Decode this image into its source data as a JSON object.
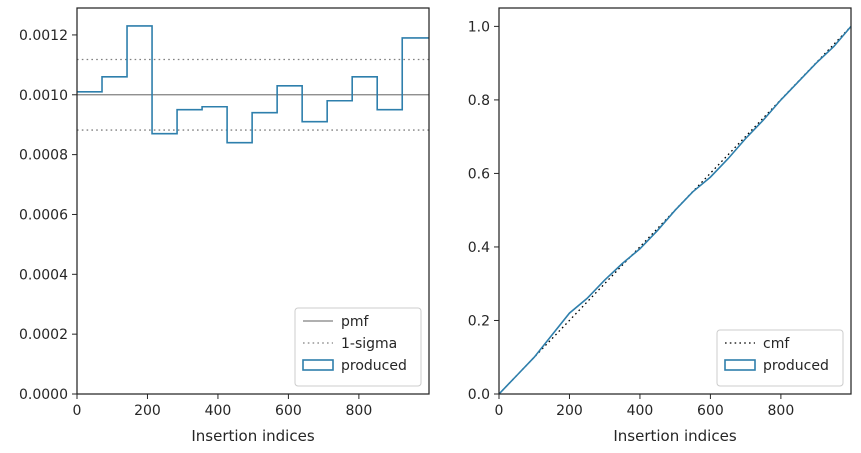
{
  "chart_data": [
    {
      "type": "line",
      "xlabel": "Insertion indices",
      "ylabel": "",
      "xlim": [
        0,
        999
      ],
      "ylim": [
        0,
        0.00129
      ],
      "xticks": [
        0,
        200,
        400,
        600,
        800
      ],
      "xtick_labels": [
        "0",
        "200",
        "400",
        "600",
        "800"
      ],
      "yticks": [
        0,
        0.0002,
        0.0004,
        0.0006,
        0.0008,
        0.001,
        0.0012
      ],
      "ytick_labels": [
        "0.0000",
        "0.0002",
        "0.0004",
        "0.0006",
        "0.0008",
        "0.0010",
        "0.0012"
      ],
      "legend_position": "lower-right",
      "series": [
        {
          "name": "pmf",
          "style": "solid",
          "color": "#808080",
          "x": [
            0,
            999
          ],
          "y": [
            0.001,
            0.001
          ]
        },
        {
          "name": "1-sigma",
          "style": "dotted",
          "color": "#808080",
          "x": [
            0,
            999
          ],
          "y": [
            0.000882,
            0.000882
          ]
        },
        {
          "name": "",
          "style": "dotted",
          "color": "#808080",
          "x": [
            0,
            999
          ],
          "y": [
            0.001118,
            0.001118
          ]
        },
        {
          "name": "produced",
          "style": "step",
          "color": "#2e7fac",
          "bin_edges": [
            0,
            71,
            142,
            213,
            284,
            355,
            426,
            497,
            568,
            639,
            710,
            781,
            852,
            923,
            999
          ],
          "values": [
            0.00101,
            0.00106,
            0.00123,
            0.00087,
            0.00095,
            0.00096,
            0.00084,
            0.00094,
            0.00103,
            0.00091,
            0.00098,
            0.00106,
            0.00095,
            0.00119
          ]
        }
      ],
      "legend": [
        "pmf",
        "1-sigma",
        "produced"
      ]
    },
    {
      "type": "line",
      "xlabel": "Insertion indices",
      "ylabel": "",
      "xlim": [
        0,
        999
      ],
      "ylim": [
        0,
        1.05
      ],
      "xticks": [
        0,
        200,
        400,
        600,
        800
      ],
      "xtick_labels": [
        "0",
        "200",
        "400",
        "600",
        "800"
      ],
      "yticks": [
        0,
        0.2,
        0.4,
        0.6,
        0.8,
        1.0
      ],
      "ytick_labels": [
        "0.0",
        "0.2",
        "0.4",
        "0.6",
        "0.8",
        "1.0"
      ],
      "legend_position": "lower-right",
      "series": [
        {
          "name": "cmf",
          "style": "dotted",
          "color": "#000000",
          "x": [
            0,
            999
          ],
          "y": [
            0,
            1
          ]
        },
        {
          "name": "produced",
          "style": "solid",
          "color": "#2e7fac",
          "x": [
            0,
            50,
            100,
            150,
            200,
            250,
            300,
            350,
            400,
            450,
            500,
            550,
            600,
            650,
            700,
            750,
            800,
            850,
            900,
            950,
            999
          ],
          "y": [
            0,
            0.05,
            0.1,
            0.16,
            0.22,
            0.26,
            0.31,
            0.355,
            0.395,
            0.445,
            0.5,
            0.55,
            0.59,
            0.64,
            0.695,
            0.745,
            0.8,
            0.85,
            0.9,
            0.945,
            1.0
          ]
        }
      ],
      "legend": [
        "cmf",
        "produced"
      ]
    }
  ]
}
